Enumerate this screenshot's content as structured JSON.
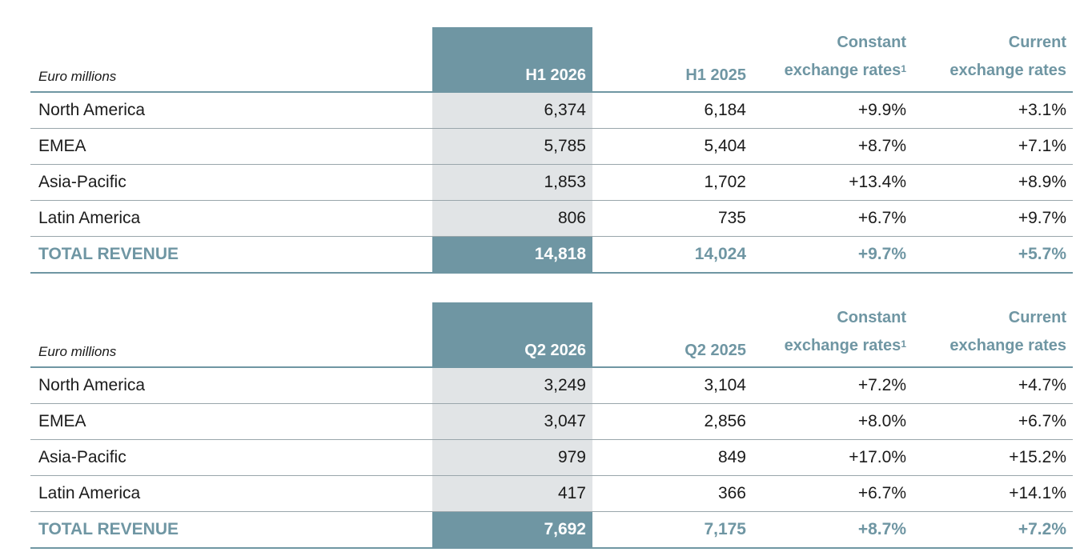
{
  "tables": [
    {
      "unit_label": "Euro millions",
      "headers": {
        "current": "H1 2026",
        "previous": "H1 2025",
        "constant_line1": "Constant",
        "constant_line2": "exchange rates",
        "constant_footnote": "1",
        "current_rates_line1": "Current",
        "current_rates_line2": "exchange rates"
      },
      "rows": [
        {
          "region": "North America",
          "current": "6,374",
          "previous": "6,184",
          "constant": "+9.9%",
          "current_rates": "+3.1%"
        },
        {
          "region": "EMEA",
          "current": "5,785",
          "previous": "5,404",
          "constant": "+8.7%",
          "current_rates": "+7.1%"
        },
        {
          "region": "Asia-Pacific",
          "current": "1,853",
          "previous": "1,702",
          "constant": "+13.4%",
          "current_rates": "+8.9%"
        },
        {
          "region": "Latin America",
          "current": "806",
          "previous": "735",
          "constant": "+6.7%",
          "current_rates": "+9.7%"
        }
      ],
      "total": {
        "region": "TOTAL REVENUE",
        "current": "14,818",
        "previous": "14,024",
        "constant": "+9.7%",
        "current_rates": "+5.7%"
      }
    },
    {
      "unit_label": "Euro millions",
      "headers": {
        "current": "Q2 2026",
        "previous": "Q2 2025",
        "constant_line1": "Constant",
        "constant_line2": "exchange rates",
        "constant_footnote": "1",
        "current_rates_line1": "Current",
        "current_rates_line2": "exchange rates"
      },
      "rows": [
        {
          "region": "North America",
          "current": "3,249",
          "previous": "3,104",
          "constant": "+7.2%",
          "current_rates": "+4.7%"
        },
        {
          "region": "EMEA",
          "current": "3,047",
          "previous": "2,856",
          "constant": "+8.0%",
          "current_rates": "+6.7%"
        },
        {
          "region": "Asia-Pacific",
          "current": "979",
          "previous": "849",
          "constant": "+17.0%",
          "current_rates": "+15.2%"
        },
        {
          "region": "Latin America",
          "current": "417",
          "previous": "366",
          "constant": "+6.7%",
          "current_rates": "+14.1%"
        }
      ],
      "total": {
        "region": "TOTAL REVENUE",
        "current": "7,692",
        "previous": "7,175",
        "constant": "+8.7%",
        "current_rates": "+7.2%"
      }
    }
  ],
  "colors": {
    "accent": "#6f96a3",
    "highlight_column": "#e1e4e6",
    "row_divider": "#9aa6ab"
  }
}
